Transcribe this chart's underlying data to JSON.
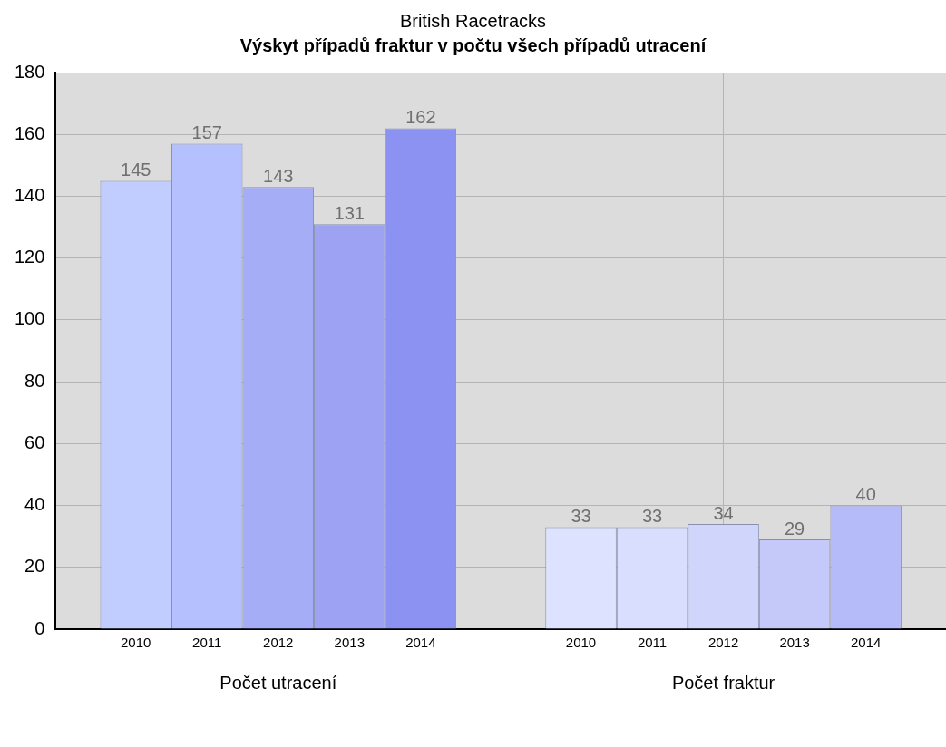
{
  "chart_data": {
    "type": "bar",
    "subtitle": "British Racetracks",
    "title": "Výskyt případů fraktur v počtu všech případů utracení",
    "categories": [
      "Počet utracení",
      "Počet fraktur"
    ],
    "series": [
      {
        "name": "2010",
        "colors": [
          "#c2cdff",
          "#dde3ff"
        ],
        "values": [
          145,
          33
        ]
      },
      {
        "name": "2011",
        "colors": [
          "#b5c0ff",
          "#d9deff"
        ],
        "values": [
          157,
          33
        ]
      },
      {
        "name": "2012",
        "colors": [
          "#a5adf6",
          "#d0d5fc"
        ],
        "values": [
          143,
          34
        ]
      },
      {
        "name": "2013",
        "colors": [
          "#9da3f2",
          "#c4c9fa"
        ],
        "values": [
          131,
          29
        ]
      },
      {
        "name": "2014",
        "colors": [
          "#8c92f2",
          "#b5bbf8"
        ],
        "values": [
          162,
          40
        ]
      }
    ],
    "ylim": [
      0,
      180
    ],
    "yticks": [
      0,
      20,
      40,
      60,
      80,
      100,
      120,
      140,
      160,
      180
    ],
    "grid": true,
    "data_labels": true,
    "legend": false
  }
}
